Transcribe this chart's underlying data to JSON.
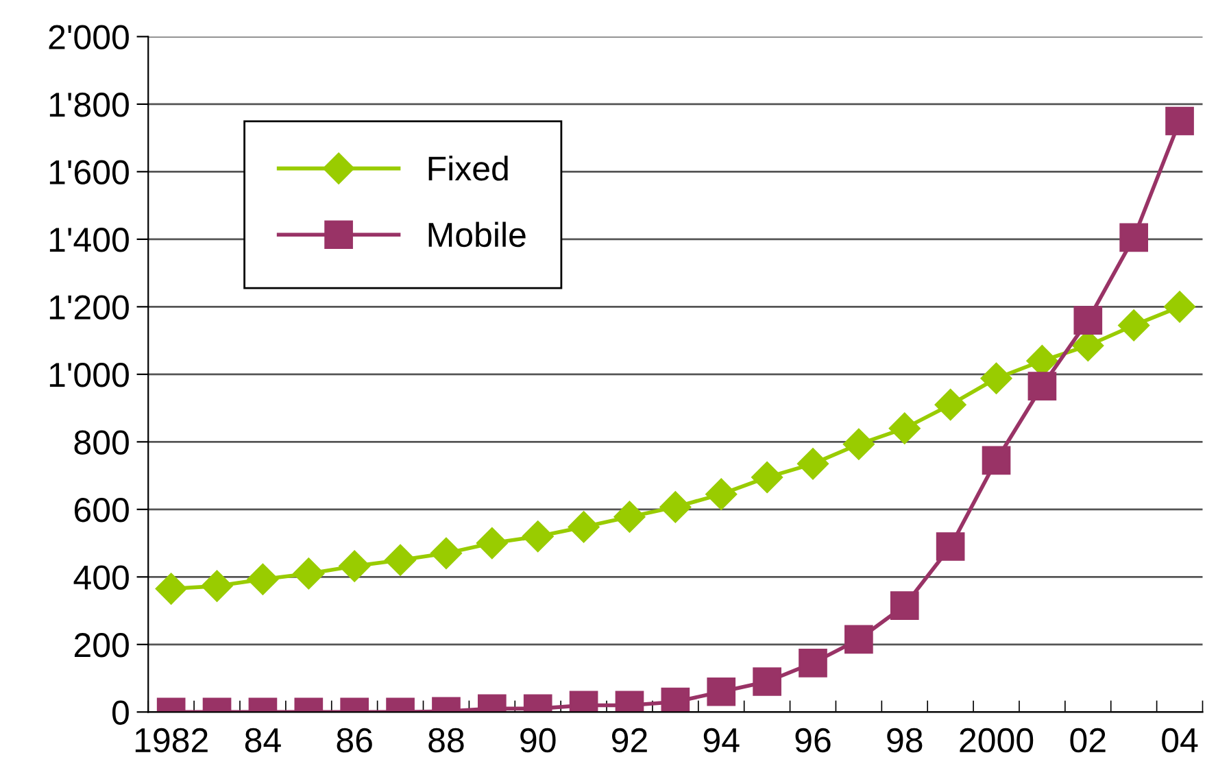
{
  "chart_data": {
    "type": "line",
    "categories": [
      "1982",
      null,
      "84",
      null,
      "86",
      null,
      "88",
      null,
      "90",
      null,
      "92",
      null,
      "94",
      null,
      "96",
      null,
      "98",
      null,
      "2000",
      null,
      "02",
      null,
      "04"
    ],
    "series": [
      {
        "name": "Fixed",
        "color": "#99cc00",
        "marker": "diamond",
        "values": [
          365,
          373,
          393,
          410,
          432,
          450,
          470,
          500,
          520,
          548,
          578,
          607,
          645,
          695,
          735,
          793,
          840,
          910,
          988,
          1040,
          1085,
          1145,
          1200
        ]
      },
      {
        "name": "Mobile",
        "color": "#993366",
        "marker": "square",
        "values": [
          0,
          0,
          0,
          0,
          0,
          0,
          2,
          10,
          10,
          20,
          20,
          30,
          60,
          90,
          145,
          215,
          315,
          490,
          745,
          965,
          1160,
          1405,
          1750
        ]
      }
    ],
    "ylim": [
      0,
      2000
    ],
    "yticks": [
      0,
      200,
      400,
      600,
      800,
      {
        "value": 1000,
        "label": "1'000"
      },
      {
        "value": 1200,
        "label": "1'200"
      },
      {
        "value": 1400,
        "label": "1'400"
      },
      {
        "value": 1600,
        "label": "1'600"
      },
      {
        "value": 1800,
        "label": "1'800"
      },
      {
        "value": 2000,
        "label": "2'000"
      }
    ],
    "grid": "y",
    "legend": "top left"
  }
}
